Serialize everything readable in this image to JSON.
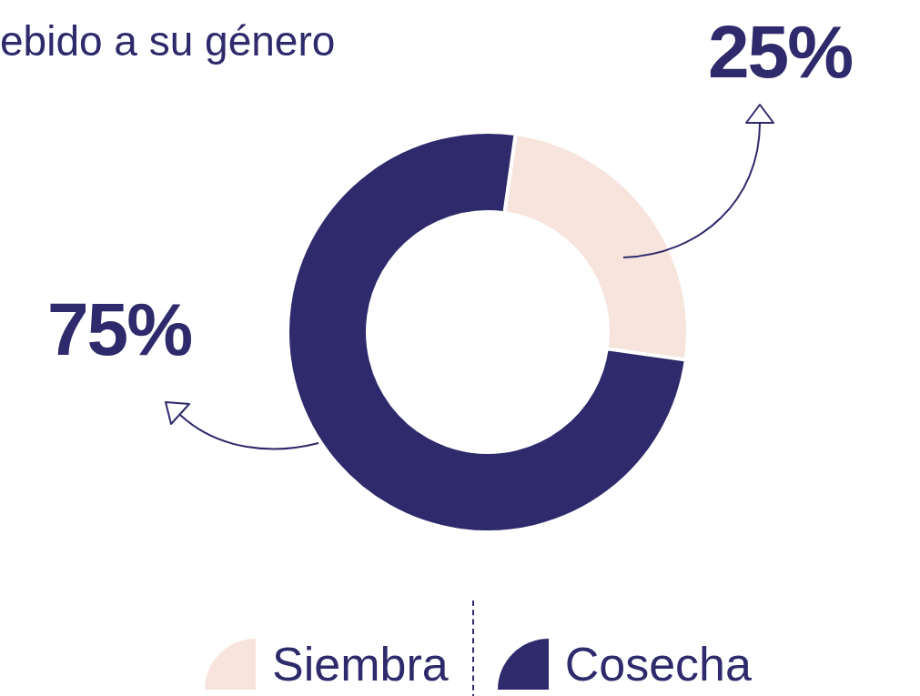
{
  "chart_data": {
    "type": "donut",
    "title": "ebido a su género",
    "categories": [
      "Siembra",
      "Cosecha"
    ],
    "values": [
      25,
      75
    ],
    "colors": [
      "#f7e4dc",
      "#2e2a6b"
    ],
    "value_labels": [
      "25%",
      "75%"
    ],
    "legend": "bottom"
  }
}
